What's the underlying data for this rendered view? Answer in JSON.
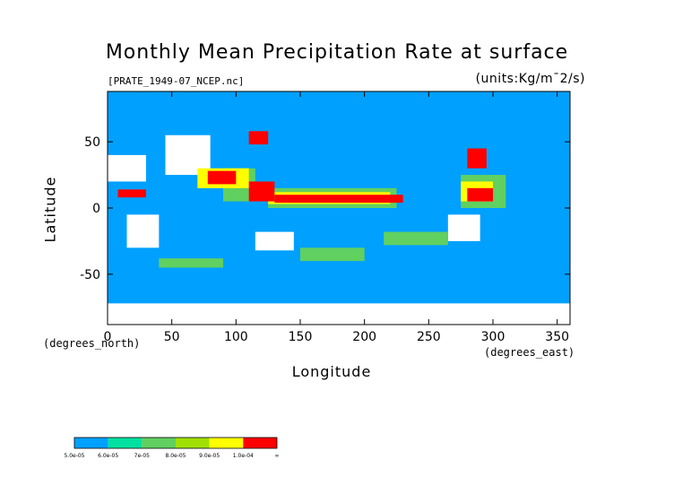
{
  "chart_data": {
    "type": "heatmap",
    "title": "Monthly Mean Precipitation Rate at surface",
    "file_label": "[PRATE_1949-07_NCEP.nc]",
    "units_label": "(units:Kg/m¯2/s)",
    "xlabel": "Longitude",
    "ylabel": "Latitude",
    "x_units_label": "(degrees_east)",
    "y_units_label": "(degrees_north)",
    "xlim": [
      0,
      360
    ],
    "ylim": [
      -88,
      88
    ],
    "x_ticks": [
      {
        "value": 0,
        "label": "0"
      },
      {
        "value": 50,
        "label": "50"
      },
      {
        "value": 100,
        "label": "100"
      },
      {
        "value": 150,
        "label": "150"
      },
      {
        "value": 200,
        "label": "200"
      },
      {
        "value": 250,
        "label": "250"
      },
      {
        "value": 300,
        "label": "300"
      },
      {
        "value": 350,
        "label": "350"
      }
    ],
    "y_ticks": [
      {
        "value": 50,
        "label": "50"
      },
      {
        "value": 0,
        "label": "0"
      },
      {
        "value": -50,
        "label": "-50"
      }
    ],
    "background_color": "#00a0ff",
    "missing_color": "#ffffff",
    "colorbar": [
      {
        "label": "5.0e-05",
        "color": "#00a0ff"
      },
      {
        "label": "6.0e-05",
        "color": "#00e0a0"
      },
      {
        "label": "7e-05",
        "color": "#60d060"
      },
      {
        "label": "8.0e-05",
        "color": "#a0e000"
      },
      {
        "label": "9.0e-05",
        "color": "#ffff00"
      },
      {
        "label": "1.0e-04",
        "color": "#ff9900"
      },
      {
        "label": "∞",
        "color": "#ff0000"
      }
    ],
    "regions": [
      {
        "level": "missing",
        "lon": [
          0,
          30
        ],
        "lat": [
          20,
          40
        ]
      },
      {
        "level": "missing",
        "lon": [
          45,
          80
        ],
        "lat": [
          25,
          55
        ]
      },
      {
        "level": "missing",
        "lon": [
          15,
          40
        ],
        "lat": [
          -30,
          -5
        ]
      },
      {
        "level": "missing",
        "lon": [
          115,
          145
        ],
        "lat": [
          -32,
          -18
        ]
      },
      {
        "level": "missing",
        "lon": [
          265,
          290
        ],
        "lat": [
          -25,
          -5
        ]
      },
      {
        "level": "missing",
        "lon": [
          0,
          360
        ],
        "lat": [
          -88,
          -72
        ]
      },
      {
        "level": "low",
        "lon": [
          90,
          115
        ],
        "lat": [
          5,
          30
        ]
      },
      {
        "level": "low",
        "lon": [
          125,
          225
        ],
        "lat": [
          0,
          15
        ]
      },
      {
        "level": "low",
        "lon": [
          275,
          310
        ],
        "lat": [
          0,
          25
        ]
      },
      {
        "level": "low",
        "lon": [
          40,
          90
        ],
        "lat": [
          -45,
          -38
        ]
      },
      {
        "level": "low",
        "lon": [
          150,
          200
        ],
        "lat": [
          -40,
          -30
        ]
      },
      {
        "level": "low",
        "lon": [
          215,
          265
        ],
        "lat": [
          -28,
          -18
        ]
      },
      {
        "level": "mid",
        "lon": [
          125,
          220
        ],
        "lat": [
          3,
          12
        ]
      },
      {
        "level": "mid",
        "lon": [
          70,
          110
        ],
        "lat": [
          15,
          30
        ]
      },
      {
        "level": "mid",
        "lon": [
          275,
          300
        ],
        "lat": [
          5,
          20
        ]
      },
      {
        "level": "high",
        "lon": [
          130,
          230
        ],
        "lat": [
          4,
          10
        ]
      },
      {
        "level": "high",
        "lon": [
          78,
          100
        ],
        "lat": [
          18,
          28
        ]
      },
      {
        "level": "high",
        "lon": [
          110,
          130
        ],
        "lat": [
          5,
          20
        ]
      },
      {
        "level": "high",
        "lon": [
          280,
          295
        ],
        "lat": [
          30,
          45
        ]
      },
      {
        "level": "high",
        "lon": [
          280,
          300
        ],
        "lat": [
          5,
          15
        ]
      },
      {
        "level": "high",
        "lon": [
          8,
          30
        ],
        "lat": [
          8,
          14
        ]
      },
      {
        "level": "high",
        "lon": [
          110,
          125
        ],
        "lat": [
          48,
          58
        ]
      }
    ]
  }
}
